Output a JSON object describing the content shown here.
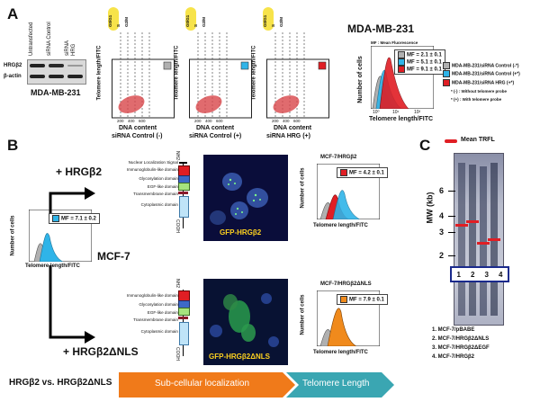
{
  "panel_labels": {
    "a": "A",
    "b": "B",
    "c": "C"
  },
  "panel_a": {
    "western_blot": {
      "lanes": [
        "Untransfected",
        "siRNA Control",
        "siRNA HRG"
      ],
      "rows": [
        "HRGβ2",
        "β-actin"
      ],
      "cell_line": "MDA-MB-231"
    },
    "cell_cycle_labels": [
      "G0/G1",
      "S",
      "G2/M"
    ],
    "scatter_x_label": "DNA content",
    "scatter_y_label": "Telomere length/FITC",
    "scatter_ticks": [
      "200",
      "400",
      "600"
    ],
    "scatter_panels": [
      {
        "caption": "siRNA Control (-)",
        "color": "#b0b0b0"
      },
      {
        "caption": "siRNA Control (+)",
        "color": "#2fb4e8"
      },
      {
        "caption": "siRNA HRG (+)",
        "color": "#e01e24"
      }
    ],
    "histogram": {
      "title": "MDA-MB-231",
      "header": "MF : Mean Fluorescence",
      "x_label": "Telomere length/FITC",
      "y_label": "Number of cells",
      "ticks": [
        "10⁰",
        "10¹",
        "10²"
      ],
      "mf_entries": [
        {
          "text": "MF = 2.1 ± 0.1",
          "color": "#b0b0b0"
        },
        {
          "text": "MF = 5.1 ± 0.1",
          "color": "#2fb4e8"
        },
        {
          "text": "MF = 9.1 ± 0.1",
          "color": "#e01e24"
        }
      ],
      "legend": [
        {
          "text": "MDA-MB-231/siRNA Control (-*)",
          "color": "#b0b0b0"
        },
        {
          "text": "MDA-MB-231/siRNA Control (+*)",
          "color": "#2fb4e8"
        },
        {
          "text": "MDA-MB-231/siRNA HRG (+*)",
          "color": "#e01e24"
        }
      ],
      "notes": [
        "* (-) : Without telomere probe",
        "* (+) : With telomere probe"
      ]
    }
  },
  "panel_b": {
    "top_label": "+ HRGβ2",
    "bottom_label": "+ HRGβ2ΔNLS",
    "cell_line": "MCF-7",
    "nh2": "NH2",
    "cooh": "COOH",
    "domains_top": [
      "Nuclear Localization Signal",
      "Immunoglobulin-like domain",
      "Glycosylation domain",
      "EGF-like domain",
      "Transmembrane domain",
      "Cytoplasmic domain"
    ],
    "domains_bottom": [
      "Immunoglobulin-like domain",
      "Glycosylation domain",
      "EGF-like domain",
      "Transmembrane domain",
      "Cytoplasmic domain"
    ],
    "micro_top_label": "GFP-HRGβ2",
    "micro_bottom_label": "GFP-HRGβ2ΔNLS",
    "hist_left": {
      "mf": "MF = 7.1 ± 0.2",
      "color": "#2fb4e8"
    },
    "hist_top": {
      "title": "MCF-7/HRGβ2",
      "mf": "MF = 4.2 ± 0.1",
      "color": "#e01e24"
    },
    "hist_bottom": {
      "title": "MCF-7/HRGβ2ΔNLS",
      "mf": "MF = 7.9 ± 0.1",
      "color": "#f08a1c"
    },
    "x_label": "Telomere length/FITC",
    "y_label": "Number of cells",
    "footer_left": "HRGβ2 vs. HRGβ2ΔNLS",
    "footer_mid": "Sub-cellular localization",
    "footer_right": "Telomere Length"
  },
  "panel_c": {
    "legend": "Mean TRFL",
    "y_label": "MW (kb)",
    "markers": [
      "6",
      "4",
      "3",
      "2"
    ],
    "lanes": [
      "1",
      "2",
      "3",
      "4"
    ],
    "lane_key": [
      "1. MCF-7/pBABE",
      "2. MCF-7/HRGβ2ΔNLS",
      "3. MCF-7/HRGβ2ΔEGF",
      "4. MCF-7/HRGβ2"
    ]
  },
  "colors": {
    "orange": "#f07a1a",
    "teal": "#3aa6b2",
    "red": "#e01e24",
    "blue": "#2fb4e8",
    "grey": "#b0b0b0"
  }
}
